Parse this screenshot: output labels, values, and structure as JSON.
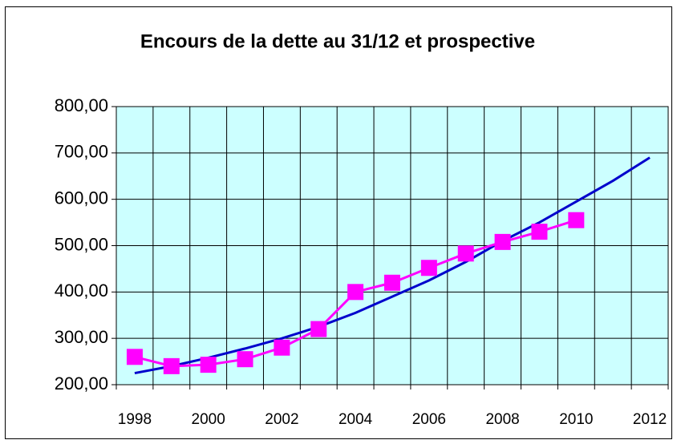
{
  "chart_data": {
    "type": "line",
    "title": "Encours de la dette au 31/12 et prospective",
    "categories": [
      "1998",
      null,
      "2000",
      null,
      "2002",
      null,
      "2004",
      null,
      "2006",
      null,
      "2008",
      null,
      "2010",
      null,
      "2012"
    ],
    "series": [
      {
        "color": "#0000cc",
        "marker": false,
        "values": [
          225,
          240,
          258,
          278,
          300,
          325,
          355,
          390,
          425,
          465,
          510,
          550,
          595,
          640,
          690
        ]
      },
      {
        "color": "#ff00ff",
        "marker": true,
        "values": [
          260,
          240,
          243,
          255,
          280,
          320,
          400,
          420,
          452,
          483,
          508,
          530,
          555,
          null,
          null
        ]
      }
    ],
    "ylim": [
      200,
      800
    ],
    "yticks": [
      {
        "value": 200,
        "label": "200,00"
      },
      {
        "value": 300,
        "label": "300,00"
      },
      {
        "value": 400,
        "label": "400,00"
      },
      {
        "value": 500,
        "label": "500,00"
      },
      {
        "value": 600,
        "label": "600,00"
      },
      {
        "value": 700,
        "label": "700,00"
      },
      {
        "value": 800,
        "label": "800,00"
      }
    ],
    "grid": true,
    "plot_background": "#ccffff"
  }
}
